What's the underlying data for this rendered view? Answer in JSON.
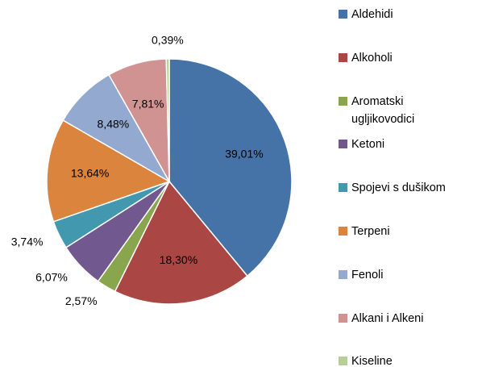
{
  "chart_data": {
    "type": "pie",
    "categories": [
      "Aldehidi",
      "Alkoholi",
      "Aromatski ugljikovodici",
      "Ketoni",
      "Spojevi s dušikom",
      "Terpeni",
      "Fenoli",
      "Alkani i Alkeni",
      "Kiseline"
    ],
    "values": [
      39.01,
      18.3,
      2.57,
      6.07,
      3.74,
      13.64,
      8.48,
      7.81,
      0.39
    ],
    "value_labels": [
      "39,01%",
      "18,30%",
      "2,57%",
      "6,07%",
      "3,74%",
      "13,64%",
      "8,48%",
      "7,81%",
      "0,39%"
    ],
    "colors": [
      "#4572a7",
      "#aa4643",
      "#89a54e",
      "#71588f",
      "#4198af",
      "#db843d",
      "#93a9cf",
      "#d19392",
      "#b9cd96"
    ],
    "legend": "right"
  }
}
